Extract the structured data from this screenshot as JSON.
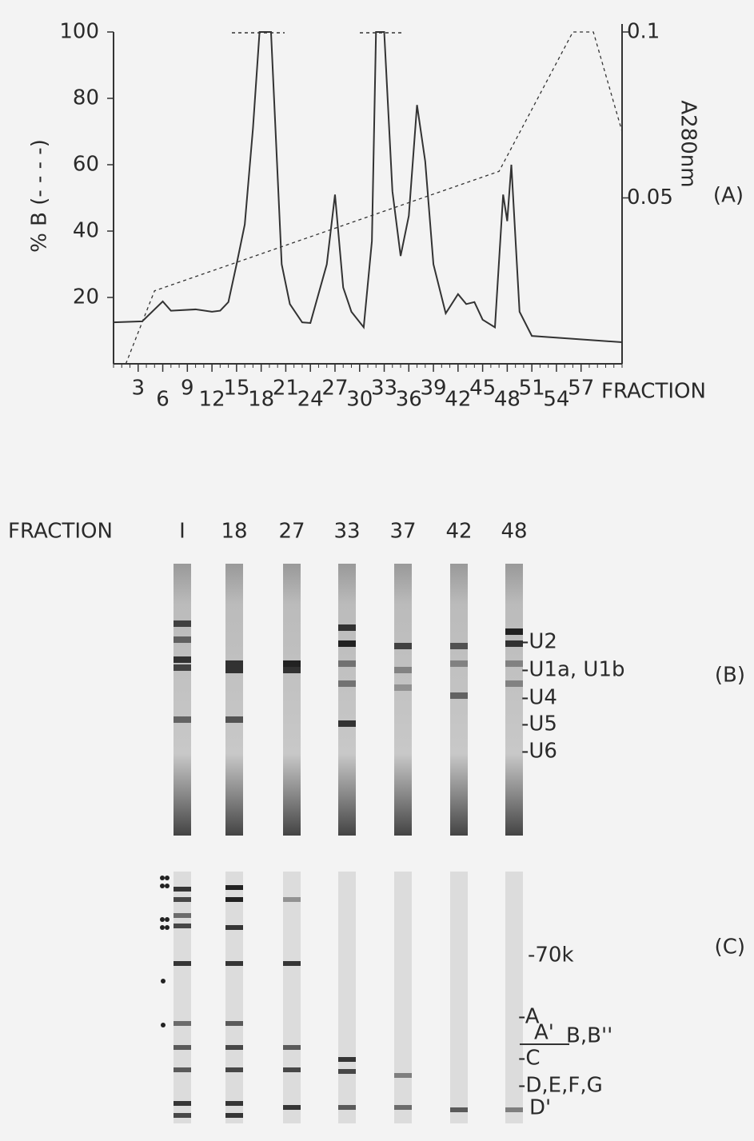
{
  "chart_data": {
    "type": "line",
    "xlabel": "FRACTION",
    "ylabel": "% B (- - - -)",
    "y2label": "A280nm",
    "panel_label": "(A)",
    "xlim": [
      0,
      62
    ],
    "xticks": [
      3,
      6,
      9,
      12,
      15,
      18,
      21,
      24,
      27,
      30,
      33,
      36,
      39,
      42,
      45,
      48,
      51,
      54,
      57
    ],
    "ylim": [
      0,
      100
    ],
    "yticks": [
      20,
      40,
      60,
      80,
      100
    ],
    "y2lim": [
      0,
      0.1
    ],
    "y2ticks": [
      0.05,
      0.1
    ],
    "series": [
      {
        "color": "#333333",
        "dashed": true,
        "x": [
          1.5,
          5,
          47,
          56,
          58.5,
          62
        ],
        "values": [
          0,
          22,
          58,
          100,
          100,
          70
        ]
      },
      {
        "color": "#333333",
        "dashed": false,
        "axis": "y2",
        "x": [
          0,
          3.5,
          6,
          7,
          10,
          12,
          13,
          14,
          15,
          16,
          17,
          17.8,
          19.2,
          20.5,
          21.5,
          23,
          24,
          26,
          27,
          28,
          29,
          30.5,
          31.5,
          32,
          33,
          34,
          35,
          36,
          37,
          38,
          39,
          40.5,
          42,
          43,
          44,
          45,
          46.5,
          47.5,
          48,
          48.5,
          49.5,
          51,
          55,
          62
        ],
        "values": [
          0.0125,
          0.0128,
          0.0188,
          0.016,
          0.0164,
          0.0157,
          0.016,
          0.0186,
          0.03,
          0.042,
          0.071,
          0.1,
          0.1,
          0.03,
          0.018,
          0.0125,
          0.0123,
          0.03,
          0.051,
          0.023,
          0.0157,
          0.011,
          0.037,
          0.1,
          0.1,
          0.052,
          0.0325,
          0.0446,
          0.078,
          0.061,
          0.03,
          0.0152,
          0.021,
          0.018,
          0.0186,
          0.0133,
          0.011,
          0.051,
          0.043,
          0.06,
          0.0157,
          0.0084,
          0.0077,
          0.0065
        ]
      }
    ]
  },
  "gel": {
    "header": "FRACTION",
    "lanes": [
      "I",
      "18",
      "27",
      "33",
      "37",
      "42",
      "48"
    ],
    "panel_b": {
      "label": "(B)",
      "bands": [
        "-U2",
        "-U1a, U1b",
        "-U4",
        "-U5",
        "-U6"
      ]
    },
    "panel_c": {
      "label": "(C)",
      "bands": [
        "-70k",
        "-A",
        "A'",
        "B,B''",
        "-C",
        "-D,E,F,G",
        "D'"
      ]
    }
  }
}
